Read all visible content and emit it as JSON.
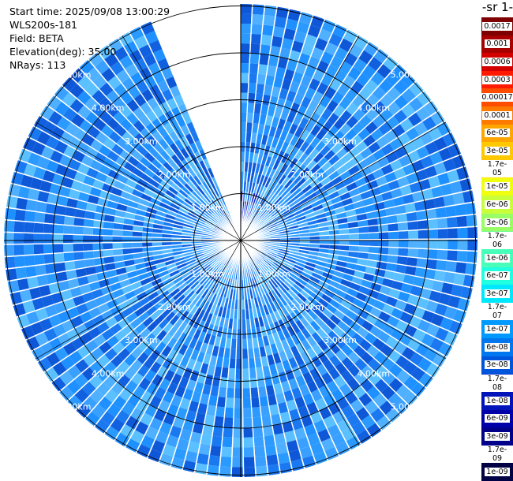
{
  "header": {
    "start_time": "Start time: 2025/09/08 13:00:29",
    "instrument": "WLS200s-181",
    "field": "Field: BETA",
    "elevation": "Elevation(deg): 35.00",
    "nrays": "NRays: 113"
  },
  "colorbar": {
    "title": "-1 sr-",
    "labels": [
      "0.0017",
      "0.001",
      "0.0006",
      "0.0003",
      "0.00017",
      "0.0001",
      "6e-05",
      "3e-05",
      "1.7e-05",
      "1e-05",
      "6e-06",
      "3e-06",
      "1.7e-06",
      "1e-06",
      "6e-07",
      "3e-07",
      "1.7e-07",
      "1e-07",
      "6e-08",
      "3e-08",
      "1.7e-08",
      "1e-08",
      "6e-09",
      "3e-09",
      "1.7e-09",
      "1e-09"
    ],
    "colors": [
      "#7f0000",
      "#a80000",
      "#d40000",
      "#ff1a00",
      "#ff4d00",
      "#ff7a00",
      "#ffa500",
      "#ffc800",
      "#ffe800",
      "#f0ff10",
      "#c8ff3a",
      "#9aff66",
      "#70ff90",
      "#47ffb8",
      "#20ffe0",
      "#00e8ff",
      "#00c0ff",
      "#0099ff",
      "#0077ee",
      "#0055dd",
      "#0033cc",
      "#0014ba",
      "#0000a8",
      "#00008a",
      "#000066",
      "#000044"
    ]
  },
  "range_rings": {
    "labels": [
      "1.00km",
      "2.00km",
      "3.00km",
      "4.00km",
      "5.00km"
    ]
  },
  "ppi": {
    "field_colors": [
      "#1e90ff",
      "#3aa0ff",
      "#1a78f0",
      "#4fb0ff",
      "#1060e0",
      "#2a9aff",
      "#5ac0ff",
      "#0e58d8"
    ],
    "gap_start_deg": 337,
    "gap_end_deg": 359,
    "ray_count": 113
  }
}
